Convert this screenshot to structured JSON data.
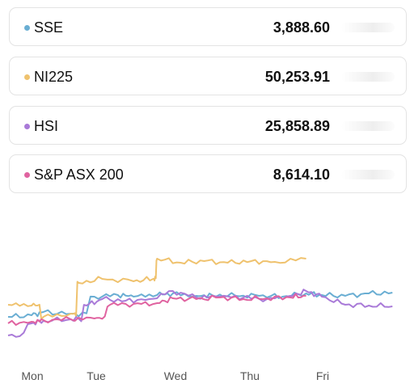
{
  "indices": [
    {
      "name": "SSE",
      "value": "3,888.60",
      "color": "#6aaed3"
    },
    {
      "name": "NI225",
      "value": "50,253.91",
      "color": "#efc26e"
    },
    {
      "name": "HSI",
      "value": "25,858.89",
      "color": "#a97ad8"
    },
    {
      "name": "S&P ASX 200",
      "value": "8,614.10",
      "color": "#e063a0"
    }
  ],
  "chart_data": {
    "type": "line",
    "x_labels": [
      "Mon",
      "Tue",
      "Wed",
      "Thu",
      "Fri"
    ],
    "series": [
      {
        "name": "SSE",
        "color": "#6aaed3",
        "points": [
          [
            0,
            102
          ],
          [
            0.3,
            100
          ],
          [
            0.45,
            96
          ],
          [
            0.8,
            98
          ],
          [
            1.1,
            77
          ],
          [
            1.4,
            75
          ],
          [
            1.6,
            77
          ],
          [
            1.9,
            75
          ],
          [
            2.1,
            73
          ],
          [
            2.4,
            76
          ],
          [
            2.6,
            75
          ],
          [
            2.9,
            76
          ],
          [
            3.2,
            76
          ],
          [
            3.5,
            77
          ],
          [
            3.8,
            73
          ],
          [
            4.0,
            75
          ],
          [
            4.3,
            76
          ],
          [
            4.6,
            73
          ],
          [
            4.9,
            72
          ]
        ]
      },
      {
        "name": "NI225",
        "color": "#efc26e",
        "points": [
          [
            0,
            87
          ],
          [
            0.3,
            88
          ],
          [
            0.45,
            102
          ],
          [
            0.8,
            98
          ],
          [
            0.9,
            60
          ],
          [
            1.2,
            55
          ],
          [
            1.6,
            58
          ],
          [
            1.85,
            55
          ],
          [
            1.9,
            30
          ],
          [
            2.2,
            35
          ],
          [
            2.5,
            33
          ],
          [
            2.8,
            35
          ],
          [
            3.1,
            33
          ],
          [
            3.4,
            34
          ],
          [
            3.8,
            30
          ]
        ]
      },
      {
        "name": "HSI",
        "color": "#a97ad8",
        "points": [
          [
            0,
            125
          ],
          [
            0.3,
            110
          ],
          [
            0.45,
            107
          ],
          [
            0.8,
            105
          ],
          [
            1.0,
            88
          ],
          [
            1.2,
            80
          ],
          [
            1.5,
            82
          ],
          [
            1.8,
            80
          ],
          [
            2.1,
            70
          ],
          [
            2.4,
            78
          ],
          [
            2.7,
            77
          ],
          [
            3.0,
            78
          ],
          [
            3.3,
            80
          ],
          [
            3.6,
            76
          ],
          [
            3.8,
            70
          ],
          [
            4.0,
            77
          ],
          [
            4.3,
            87
          ],
          [
            4.6,
            88
          ],
          [
            4.9,
            89
          ]
        ]
      },
      {
        "name": "S&P ASX 200",
        "color": "#e063a0",
        "points": [
          [
            0,
            110
          ],
          [
            0.3,
            108
          ],
          [
            0.45,
            106
          ],
          [
            0.8,
            105
          ],
          [
            1.1,
            104
          ],
          [
            1.3,
            87
          ],
          [
            1.6,
            86
          ],
          [
            1.9,
            85
          ],
          [
            2.1,
            79
          ],
          [
            2.4,
            80
          ],
          [
            2.7,
            78
          ],
          [
            3.0,
            80
          ],
          [
            3.3,
            79
          ],
          [
            3.6,
            78
          ],
          [
            3.8,
            76
          ]
        ]
      }
    ]
  }
}
